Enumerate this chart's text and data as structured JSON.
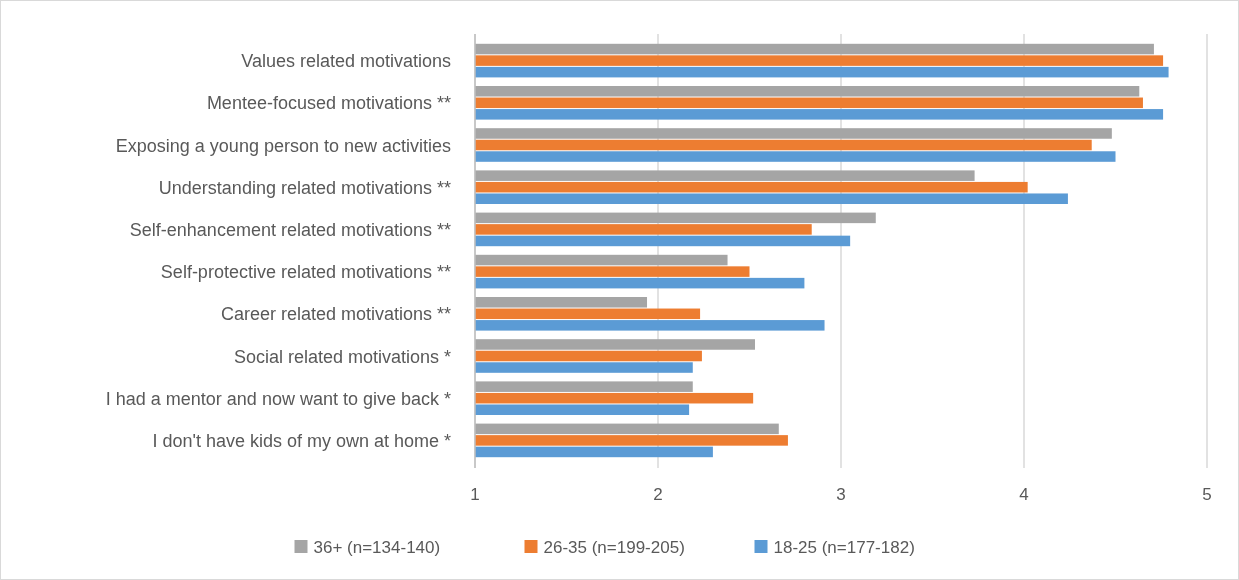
{
  "chart_data": {
    "type": "bar",
    "orientation": "horizontal",
    "categories": [
      "Values related motivations",
      "Mentee-focused motivations **",
      "Exposing a young person to new activities",
      "Understanding related motivations **",
      "Self-enhancement related motivations **",
      "Self-protective related motivations **",
      "Career related motivations **",
      "Social related motivations *",
      "I had a mentor and now want to give back *",
      "I don't have kids of my own at home *"
    ],
    "series": [
      {
        "name": "36+ (n=134-140)",
        "color": "#a5a5a5",
        "values": [
          4.71,
          4.63,
          4.48,
          3.73,
          3.19,
          2.38,
          1.94,
          2.53,
          2.19,
          2.66
        ]
      },
      {
        "name": "26-35 (n=199-205)",
        "color": "#ed7d31",
        "values": [
          4.76,
          4.65,
          4.37,
          4.02,
          2.84,
          2.5,
          2.23,
          2.24,
          2.52,
          2.71
        ]
      },
      {
        "name": "18-25 (n=177-182)",
        "color": "#5b9bd5",
        "values": [
          4.79,
          4.76,
          4.5,
          4.24,
          3.05,
          2.8,
          2.91,
          2.19,
          2.17,
          2.3
        ]
      }
    ],
    "xlim": [
      1,
      5
    ],
    "xticks": [
      1,
      2,
      3,
      4,
      5
    ],
    "grid": "x",
    "legend": "bottom"
  }
}
